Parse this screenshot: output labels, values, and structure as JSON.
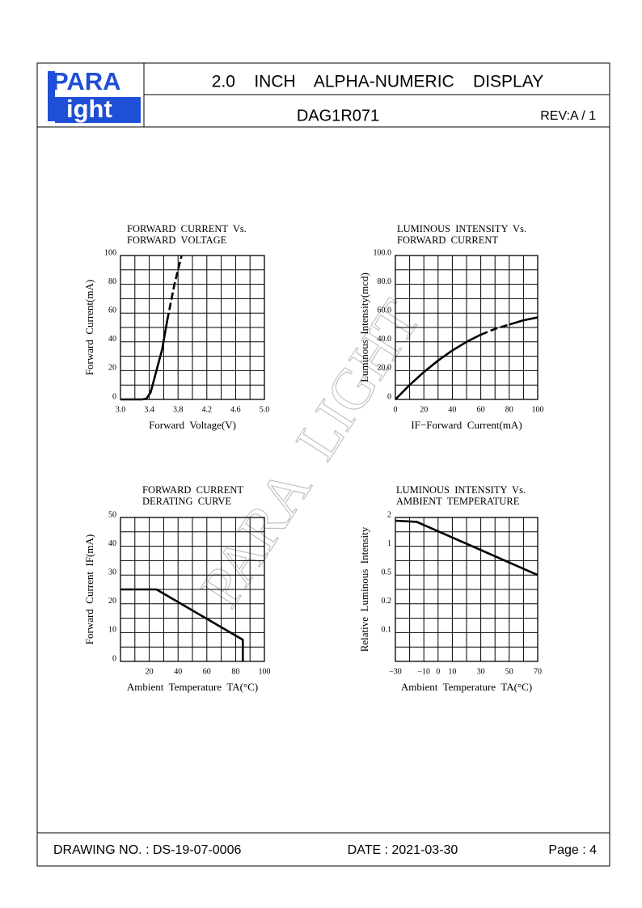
{
  "header": {
    "logo": {
      "top": "PARA",
      "bottom": "ight"
    },
    "title": "2.0    INCH    ALPHA-NUMERIC    DISPLAY",
    "part_number": "DAG1R071",
    "revision": "REV:A / 1"
  },
  "watermark": "PARA  LIGHT",
  "chart_data": [
    {
      "type": "line",
      "title": [
        "FORWARD  CURRENT  Vs.",
        "FORWARD  VOLTAGE"
      ],
      "xlabel": "Forward  Voltage(V)",
      "ylabel": "Forward  Current(mA)",
      "xlim": [
        3.0,
        5.0
      ],
      "ylim": [
        0,
        100
      ],
      "xticks": [
        {
          "value": 3,
          "label": "3.0"
        },
        3.4,
        3.8,
        4.2,
        4.6,
        {
          "value": 5,
          "label": "5.0"
        }
      ],
      "yticks": [
        0,
        20,
        40,
        60,
        80,
        100
      ],
      "grid": true,
      "color": "#000000",
      "series": [
        {
          "style": "solid",
          "x": [
            3.0,
            3.3,
            3.36,
            3.42,
            3.5,
            3.58,
            3.65
          ],
          "values": [
            0,
            0,
            0.5,
            5,
            20,
            35,
            55
          ]
        },
        {
          "style": "dashed",
          "x": [
            3.65,
            3.75,
            3.85
          ],
          "values": [
            55,
            80,
            100
          ]
        }
      ]
    },
    {
      "type": "line",
      "title": [
        "LUMINOUS  INTENSITY  Vs.",
        "FORWARD  CURRENT"
      ],
      "xlabel": "IF−Forward  Current(mA)",
      "ylabel": "Luminous  Intensity(mcd)",
      "xlim": [
        0,
        100
      ],
      "ylim": [
        0,
        100
      ],
      "xticks": [
        0,
        20,
        40,
        60,
        80,
        100
      ],
      "yticks": [
        0,
        {
          "value": 20,
          "label": "20.0"
        },
        {
          "value": 40,
          "label": "40.0"
        },
        {
          "value": 60,
          "label": "60.0"
        },
        {
          "value": 80,
          "label": "80.0"
        },
        {
          "value": 100,
          "label": "100.0"
        }
      ],
      "grid": true,
      "color": "#000000",
      "series": [
        {
          "style": "solid",
          "x": [
            0,
            10,
            20,
            30,
            40,
            50,
            60
          ],
          "values": [
            0,
            10,
            19,
            27,
            34,
            40,
            45
          ]
        },
        {
          "style": "dashed",
          "x": [
            60,
            70,
            80
          ],
          "values": [
            45,
            49,
            52
          ]
        },
        {
          "style": "solid",
          "x": [
            80,
            90,
            100
          ],
          "values": [
            52,
            55,
            57
          ]
        }
      ]
    },
    {
      "type": "line",
      "title": [
        "FORWARD  CURRENT",
        "DERATING  CURVE"
      ],
      "xlabel": "Ambient  Temperature  TA(°C)",
      "ylabel": "Forward  Current  IF(mA)",
      "xlim": [
        0,
        100
      ],
      "ylim": [
        0,
        50
      ],
      "xticks": [
        20,
        40,
        60,
        80,
        100
      ],
      "yticks": [
        0,
        10,
        20,
        30,
        40,
        50
      ],
      "grid": true,
      "color": "#000000",
      "series": [
        {
          "style": "solid",
          "x": [
            0,
            25,
            85,
            85
          ],
          "values": [
            25,
            25,
            7.5,
            0
          ]
        }
      ]
    },
    {
      "type": "line",
      "title": [
        "LUMINOUS  INTENSITY  Vs.",
        "AMBIENT  TEMPERATURE"
      ],
      "xlabel": "Ambient  Temperature  TA(°C)",
      "ylabel": "Relative  Luminous  Intensity",
      "xlim": [
        -30,
        70
      ],
      "ylim": [
        0.05,
        2
      ],
      "yscale": "log",
      "xticks": [
        {
          "value": -30,
          "label": "−30"
        },
        {
          "value": -10,
          "label": "−10"
        },
        0,
        10,
        30,
        50,
        70
      ],
      "yticks": [
        0.1,
        0.2,
        0.5,
        1,
        2
      ],
      "grid": true,
      "color": "#000000",
      "series": [
        {
          "style": "solid",
          "x": [
            -30,
            -15,
            70
          ],
          "values": [
            1.85,
            1.8,
            0.5
          ]
        }
      ]
    }
  ],
  "footer": {
    "drawing_no": "DRAWING NO. : DS-19-07-0006",
    "date": "DATE : 2021-03-30",
    "page": "Page : 4"
  }
}
